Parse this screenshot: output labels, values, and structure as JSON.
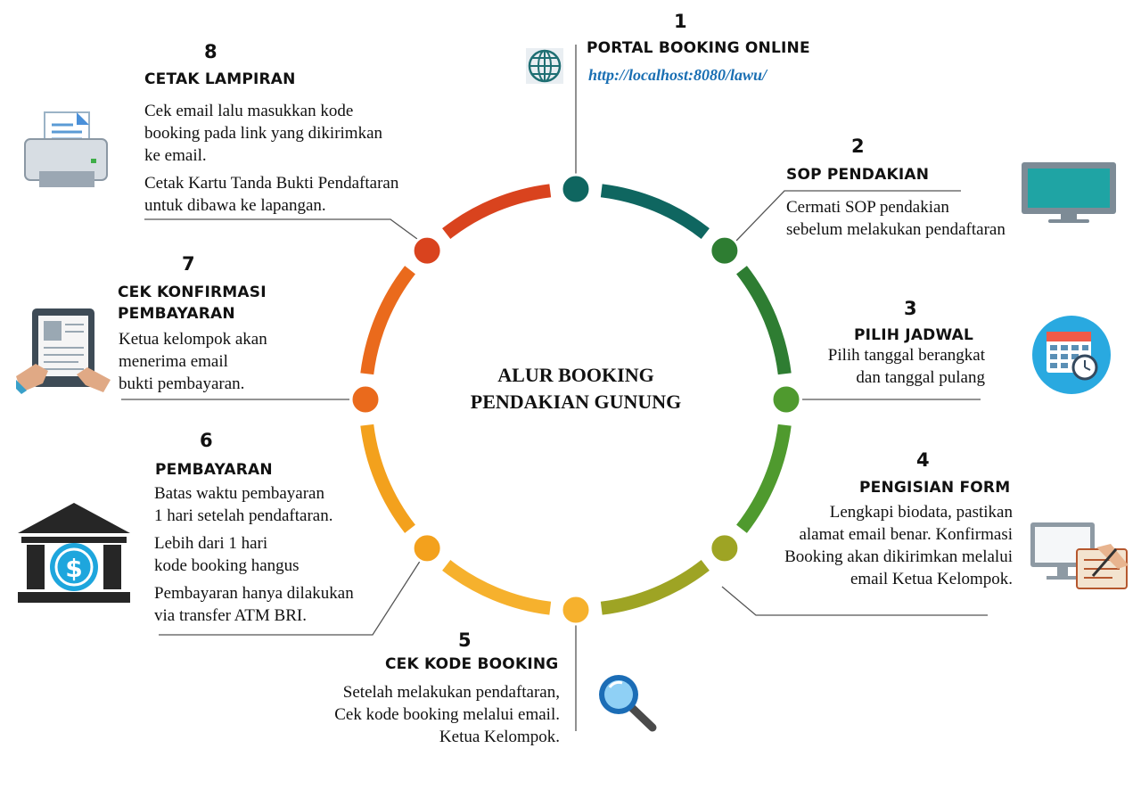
{
  "center_title": [
    "ALUR BOOKING",
    "PENDAKIAN GUNUNG"
  ],
  "steps": [
    {
      "number": "1",
      "heading": [
        "PORTAL BOOKING ONLINE"
      ],
      "link": "http://localhost:8080/lawu/",
      "icon": "globe-icon",
      "color": "#0f6660"
    },
    {
      "number": "2",
      "heading": [
        "SOP PENDAKIAN"
      ],
      "body": [
        "Cermati SOP pendakian",
        "sebelum melakukan pendaftaran"
      ],
      "icon": "monitor-icon",
      "color": "#2e7d32"
    },
    {
      "number": "3",
      "heading": [
        "PILIH JADWAL"
      ],
      "body": [
        "Pilih tanggal berangkat",
        "dan tanggal pulang"
      ],
      "icon": "calendar-clock-icon",
      "color": "#4f9a2e"
    },
    {
      "number": "4",
      "heading": [
        "PENGISIAN FORM"
      ],
      "body": [
        "Lengkapi biodata, pastikan",
        "alamat email benar. Konfirmasi",
        "Booking akan dikirimkan melalui",
        "email Ketua Kelompok."
      ],
      "icon": "form-writing-icon",
      "color": "#9ea424"
    },
    {
      "number": "5",
      "heading": [
        "CEK KODE BOOKING"
      ],
      "body": [
        "Setelah melakukan pendaftaran,",
        "Cek kode booking melalui email.",
        "Ketua Kelompok."
      ],
      "icon": "magnifier-icon",
      "color": "#f6b12d"
    },
    {
      "number": "6",
      "heading": [
        "PEMBAYARAN"
      ],
      "body_groups": [
        [
          "Batas waktu pembayaran",
          "1 hari setelah pendaftaran."
        ],
        [
          "Lebih dari 1 hari",
          "kode booking hangus"
        ],
        [
          "Pembayaran hanya dilakukan",
          "via transfer ATM BRI."
        ]
      ],
      "icon": "bank-dollar-icon",
      "color": "#f3a11d"
    },
    {
      "number": "7",
      "heading": [
        "CEK KONFIRMASI",
        "PEMBAYARAN"
      ],
      "body": [
        "Ketua kelompok akan",
        "menerima email",
        "bukti pembayaran."
      ],
      "icon": "tablet-document-icon",
      "color": "#ea6a1c"
    },
    {
      "number": "8",
      "heading": [
        "CETAK LAMPIRAN"
      ],
      "body_groups": [
        [
          "Cek email lalu masukkan kode",
          "booking pada link yang dikirimkan",
          "ke email."
        ],
        [
          "Cetak Kartu Tanda Bukti Pendaftaran",
          "untuk dibawa ke lapangan."
        ]
      ],
      "icon": "printer-icon",
      "color": "#d9431e"
    }
  ],
  "arc_colors": [
    "#0f6660",
    "#2e7d32",
    "#4f9a2e",
    "#9ea424",
    "#f6b12d",
    "#f3a11d",
    "#ea6a1c",
    "#d9431e"
  ]
}
